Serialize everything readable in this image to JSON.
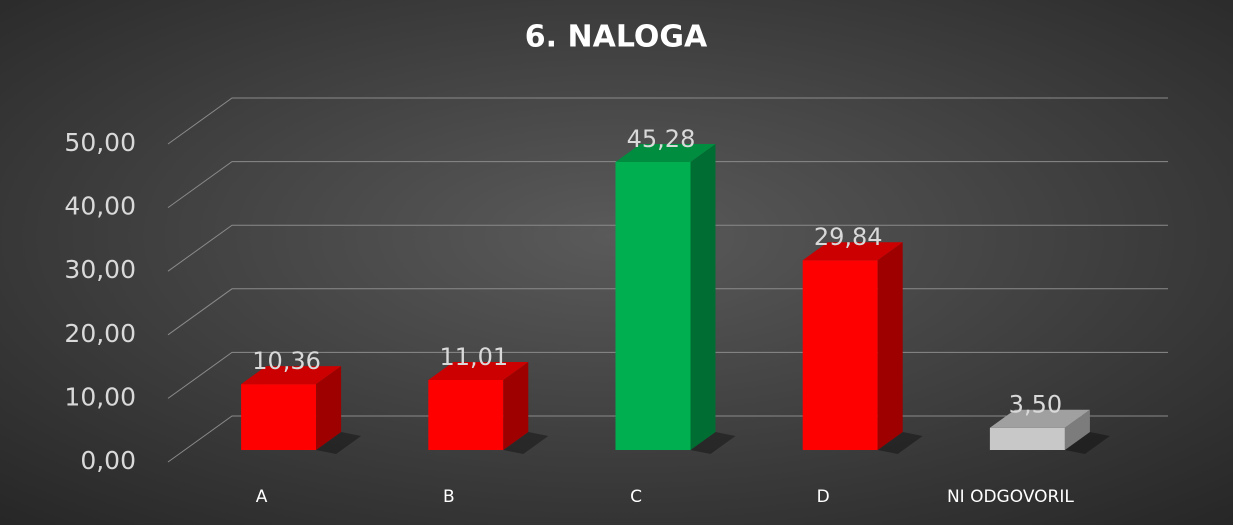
{
  "chart_data": {
    "type": "bar3d",
    "title": "6. NALOGA",
    "categories": [
      "A",
      "B",
      "C",
      "D",
      "NI ODGOVORIL"
    ],
    "values": [
      10.36,
      11.01,
      45.28,
      29.84,
      3.5
    ],
    "value_labels": [
      "10,36",
      "11,01",
      "45,28",
      "29,84",
      "3,50"
    ],
    "colors": [
      "#ff0000",
      "#ff0000",
      "#00b050",
      "#ff0000",
      "#c8c8c8"
    ],
    "ylim": [
      0,
      50
    ],
    "yticks": [
      {
        "value": 0,
        "label": "0,00"
      },
      {
        "value": 10,
        "label": "10,00"
      },
      {
        "value": 20,
        "label": "20,00"
      },
      {
        "value": 30,
        "label": "30,00"
      },
      {
        "value": 40,
        "label": "40,00"
      },
      {
        "value": 50,
        "label": "50,00"
      }
    ],
    "grid": true
  }
}
